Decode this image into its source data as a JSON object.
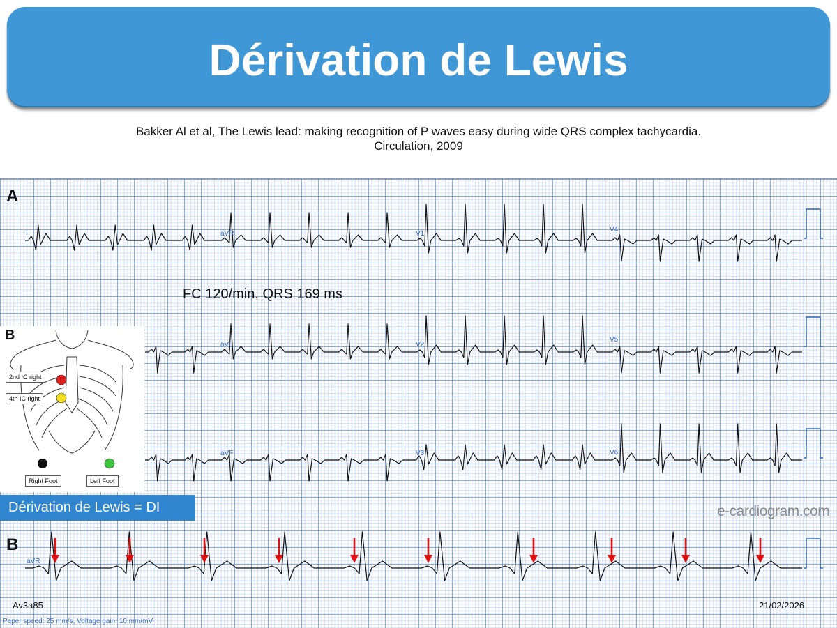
{
  "header": {
    "title": "Dérivation de Lewis"
  },
  "citation": {
    "line1": "Bakker Al et al, The Lewis lead: making recognition of P waves easy during wide QRS complex tachycardia.",
    "line2": "Circulation, 2009"
  },
  "panels": {
    "a_label": "A",
    "b_label": "B",
    "b2_label": "B"
  },
  "ecg": {
    "heart_rate_text": "FC 120/min, QRS 169 ms",
    "leads": {
      "row1": [
        "I",
        "aVR",
        "V1",
        "V4"
      ],
      "row2": [
        "aVL",
        "V2",
        "V5"
      ],
      "row3": [
        "aVF",
        "V3",
        "V6"
      ],
      "rhythm": "aVR"
    },
    "trace_color": "#111111",
    "arrow_color": "#e01010",
    "grid_color": "#4678be"
  },
  "diagram": {
    "label_2nd": "2nd IC right",
    "label_4th": "4th IC right",
    "right_foot": "Right Foot",
    "left_foot": "Left Foot",
    "electrode_colors": {
      "red": "#e02020",
      "yellow": "#f2e020",
      "black": "#111111",
      "green": "#3cc43c"
    }
  },
  "lewis_box": {
    "text": "Dérivation de Lewis = DI"
  },
  "watermark": "e-cardiogram.com",
  "footer": {
    "id": "Av3a85",
    "date": "21/02/2026",
    "paper_info": "Paper speed: 25 mm/s, Voltage gain: 10 mm/mV"
  }
}
